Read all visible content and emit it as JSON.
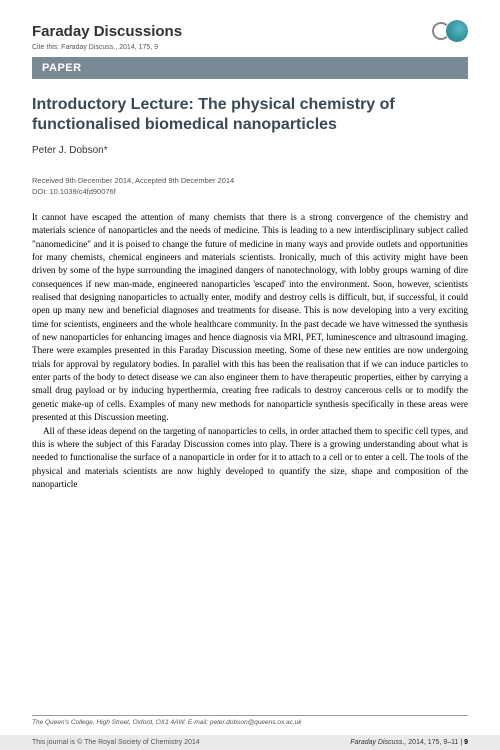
{
  "header": {
    "journal": "Faraday Discussions",
    "cite": "Cite this: Faraday Discuss., 2014, 175, 9"
  },
  "banner": "PAPER",
  "title": "Introductory Lecture: The physical chemistry of functionalised biomedical nanoparticles",
  "authors": "Peter J. Dobson*",
  "meta": {
    "received": "Received 9th December 2014, Accepted 9th December 2014",
    "doi": "DOI: 10.1039/c4fd90076f"
  },
  "body": {
    "p1": "It cannot have escaped the attention of many chemists that there is a strong convergence of the chemistry and materials science of nanoparticles and the needs of medicine. This is leading to a new interdisciplinary subject called \"nanomedicine\" and it is poised to change the future of medicine in many ways and provide outlets and opportunities for many chemists, chemical engineers and materials scientists. Ironically, much of this activity might have been driven by some of the hype surrounding the imagined dangers of nanotechnology, with lobby groups warning of dire consequences if new man-made, engineered nanoparticles 'escaped' into the environment. Soon, however, scientists realised that designing nanoparticles to actually enter, modify and destroy cells is difficult, but, if successful, it could open up many new and beneficial diagnoses and treatments for disease. This is now developing into a very exciting time for scientists, engineers and the whole healthcare community. In the past decade we have witnessed the synthesis of new nanoparticles for enhancing images and hence diagnosis via MRI, PET, luminescence and ultrasound imaging. There were examples presented in this Faraday Discussion meeting. Some of these new entities are now undergoing trials for approval by regulatory bodies. In parallel with this has been the realisation that if we can induce particles to enter parts of the body to detect disease we can also engineer them to have therapeutic properties, either by carrying a small drug payload or by inducing hyperthermia, creating free radicals to destroy cancerous cells or to modify the genetic make-up of cells. Examples of many new methods for nanoparticle synthesis specifically in these areas were presented at this Discussion meeting.",
    "p2": "All of these ideas depend on the targeting of nanoparticles to cells, in order attached them to specific cell types, and this is where the subject of this Faraday Discussion comes into play. There is a growing understanding about what is needed to functionalise the surface of a nanoparticle in order for it to attach to a cell or to enter a cell. The tools of the physical and materials scientists are now highly developed to quantify the size, shape and composition of the nanoparticle"
  },
  "affiliation": "The Queen's College, High Street, Oxford, OX1 4AW. E-mail: peter.dobson@queens.ox.ac.uk",
  "footer": {
    "left": "This journal is © The Royal Society of Chemistry 2014",
    "right_journal": "Faraday Discuss.,",
    "right_ref": " 2014, 175, 9–11 | ",
    "page": "9"
  },
  "colors": {
    "banner_bg": "#7a8a94",
    "title_color": "#3a4a54",
    "footer_bg": "#e8eaec",
    "logo_teal": "#2a8a96"
  }
}
